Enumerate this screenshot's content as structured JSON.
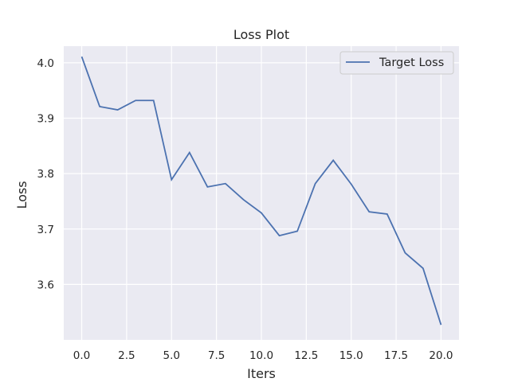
{
  "chart_data": {
    "type": "line",
    "title": "Loss Plot",
    "xlabel": "Iters",
    "ylabel": "Loss",
    "xlim": [
      -1,
      21
    ],
    "ylim": [
      3.5,
      4.03
    ],
    "xticks": [
      0.0,
      2.5,
      5.0,
      7.5,
      10.0,
      12.5,
      15.0,
      17.5,
      20.0
    ],
    "xtick_labels": [
      "0.0",
      "2.5",
      "5.0",
      "7.5",
      "10.0",
      "12.5",
      "15.0",
      "17.5",
      "20.0"
    ],
    "yticks": [
      3.6,
      3.7,
      3.8,
      3.9,
      4.0
    ],
    "ytick_labels": [
      "3.6",
      "3.7",
      "3.8",
      "3.9",
      "4.0"
    ],
    "grid": true,
    "legend_position": "top-right",
    "colors": {
      "background": "#eaeaf2",
      "grid": "#ffffff",
      "line": "#4c72b0"
    },
    "series": [
      {
        "name": "Target Loss",
        "x": [
          0,
          1,
          2,
          3,
          4,
          5,
          6,
          7,
          8,
          9,
          10,
          11,
          12,
          13,
          14,
          15,
          16,
          17,
          18,
          19,
          20
        ],
        "y": [
          4.011,
          3.921,
          3.915,
          3.932,
          3.932,
          3.789,
          3.838,
          3.776,
          3.782,
          3.753,
          3.729,
          3.688,
          3.696,
          3.782,
          3.824,
          3.781,
          3.731,
          3.727,
          3.657,
          3.629,
          3.527
        ]
      }
    ]
  }
}
